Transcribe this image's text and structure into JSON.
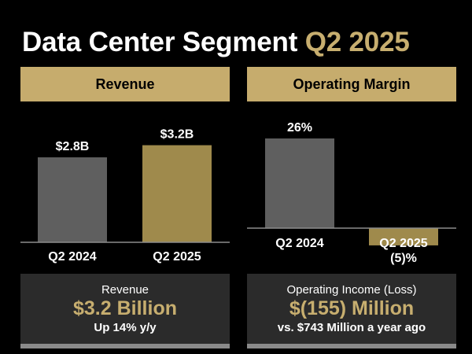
{
  "title": {
    "main": "Data Center Segment",
    "accent": "Q2 2025"
  },
  "colors": {
    "gold": "#c7ae6f",
    "bar_gold": "#9f8a4c",
    "bar_gray": "#5f5f5f",
    "header_gold": "#c6ac6d"
  },
  "chart_data": [
    {
      "type": "bar",
      "title": "Revenue",
      "categories": [
        "Q2 2024",
        "Q2 2025"
      ],
      "values": [
        2.8,
        3.2
      ],
      "data_labels": [
        "$2.8B",
        "$3.2B"
      ],
      "unit": "$B",
      "ylim": [
        0,
        3.6
      ]
    },
    {
      "type": "bar",
      "title": "Operating Margin",
      "categories": [
        "Q2 2024",
        "Q2 2025"
      ],
      "values": [
        26,
        -5
      ],
      "data_labels": [
        "26%",
        "(5)%"
      ],
      "unit": "%",
      "ylim": [
        -5,
        30
      ]
    }
  ],
  "cards": {
    "revenue": {
      "label": "Revenue",
      "value": "$3.2 Billion",
      "sub": "Up 14% y/y"
    },
    "operating": {
      "label": "Operating Income (Loss)",
      "value": "$(155) Million",
      "sub": "vs. $743 Million a year ago"
    }
  }
}
